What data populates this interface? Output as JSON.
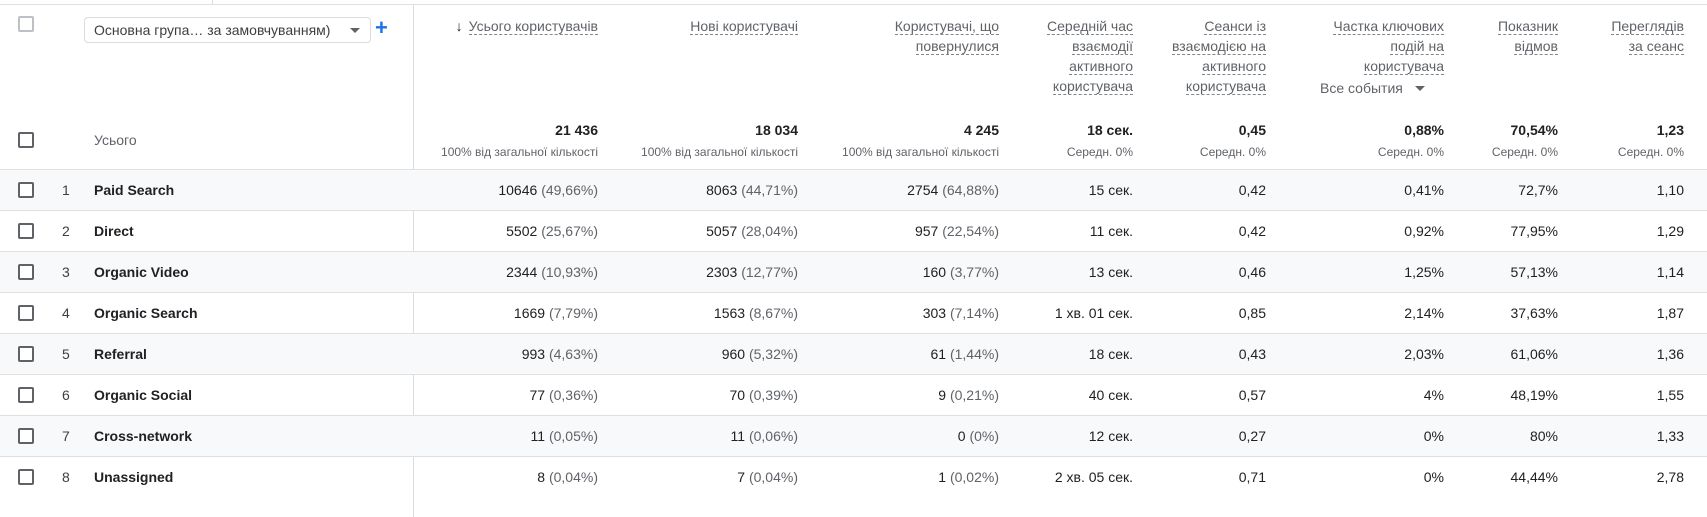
{
  "dimension_selector": {
    "label": "Основна група… за замовчуванням)"
  },
  "columns": [
    {
      "label": "Усього користувачів",
      "sorted": true
    },
    {
      "label": "Нові користувачі"
    },
    {
      "label": "Користувачі, що повернулися"
    },
    {
      "label": "Середній час взаємодії активного користувача"
    },
    {
      "label": "Сеанси із взаємодією на активного користувача"
    },
    {
      "label": "Частка ключових подій на користувача",
      "event_select": "Все события"
    },
    {
      "label": "Показник відмов"
    },
    {
      "label": "Переглядів за сеанс"
    }
  ],
  "totals": {
    "label": "Усього",
    "values": [
      "21 436",
      "18 034",
      "4 245",
      "18 сек.",
      "0,45",
      "0,88%",
      "70,54%",
      "1,23"
    ],
    "subtexts": [
      "100% від загальної кількості",
      "100% від загальної кількості",
      "100% від загальної кількості",
      "Середн. 0%",
      "Середн. 0%",
      "Середн. 0%",
      "Середн. 0%",
      "Середн. 0%"
    ]
  },
  "rows": [
    {
      "index": "1",
      "name": "Paid Search",
      "users": "10646",
      "users_pct": "(49,66%)",
      "new": "8063",
      "new_pct": "(44,71%)",
      "ret": "2754",
      "ret_pct": "(64,88%)",
      "avg_time": "15 сек.",
      "eng_sessions": "0,42",
      "key_events": "0,41%",
      "bounce": "72,7%",
      "views": "1,10"
    },
    {
      "index": "2",
      "name": "Direct",
      "users": "5502",
      "users_pct": "(25,67%)",
      "new": "5057",
      "new_pct": "(28,04%)",
      "ret": "957",
      "ret_pct": "(22,54%)",
      "avg_time": "11 сек.",
      "eng_sessions": "0,42",
      "key_events": "0,92%",
      "bounce": "77,95%",
      "views": "1,29"
    },
    {
      "index": "3",
      "name": "Organic Video",
      "users": "2344",
      "users_pct": "(10,93%)",
      "new": "2303",
      "new_pct": "(12,77%)",
      "ret": "160",
      "ret_pct": "(3,77%)",
      "avg_time": "13 сек.",
      "eng_sessions": "0,46",
      "key_events": "1,25%",
      "bounce": "57,13%",
      "views": "1,14"
    },
    {
      "index": "4",
      "name": "Organic Search",
      "users": "1669",
      "users_pct": "(7,79%)",
      "new": "1563",
      "new_pct": "(8,67%)",
      "ret": "303",
      "ret_pct": "(7,14%)",
      "avg_time": "1 хв. 01 сек.",
      "eng_sessions": "0,85",
      "key_events": "2,14%",
      "bounce": "37,63%",
      "views": "1,87"
    },
    {
      "index": "5",
      "name": "Referral",
      "users": "993",
      "users_pct": "(4,63%)",
      "new": "960",
      "new_pct": "(5,32%)",
      "ret": "61",
      "ret_pct": "(1,44%)",
      "avg_time": "18 сек.",
      "eng_sessions": "0,43",
      "key_events": "2,03%",
      "bounce": "61,06%",
      "views": "1,36"
    },
    {
      "index": "6",
      "name": "Organic Social",
      "users": "77",
      "users_pct": "(0,36%)",
      "new": "70",
      "new_pct": "(0,39%)",
      "ret": "9",
      "ret_pct": "(0,21%)",
      "avg_time": "40 сек.",
      "eng_sessions": "0,57",
      "key_events": "4%",
      "bounce": "48,19%",
      "views": "1,55"
    },
    {
      "index": "7",
      "name": "Cross-network",
      "users": "11",
      "users_pct": "(0,05%)",
      "new": "11",
      "new_pct": "(0,06%)",
      "ret": "0",
      "ret_pct": "(0%)",
      "avg_time": "12 сек.",
      "eng_sessions": "0,27",
      "key_events": "0%",
      "bounce": "80%",
      "views": "1,33"
    },
    {
      "index": "8",
      "name": "Unassigned",
      "users": "8",
      "users_pct": "(0,04%)",
      "new": "7",
      "new_pct": "(0,04%)",
      "ret": "1",
      "ret_pct": "(0,02%)",
      "avg_time": "2 хв. 05 сек.",
      "eng_sessions": "0,71",
      "key_events": "0%",
      "bounce": "44,44%",
      "views": "2,78"
    }
  ]
}
